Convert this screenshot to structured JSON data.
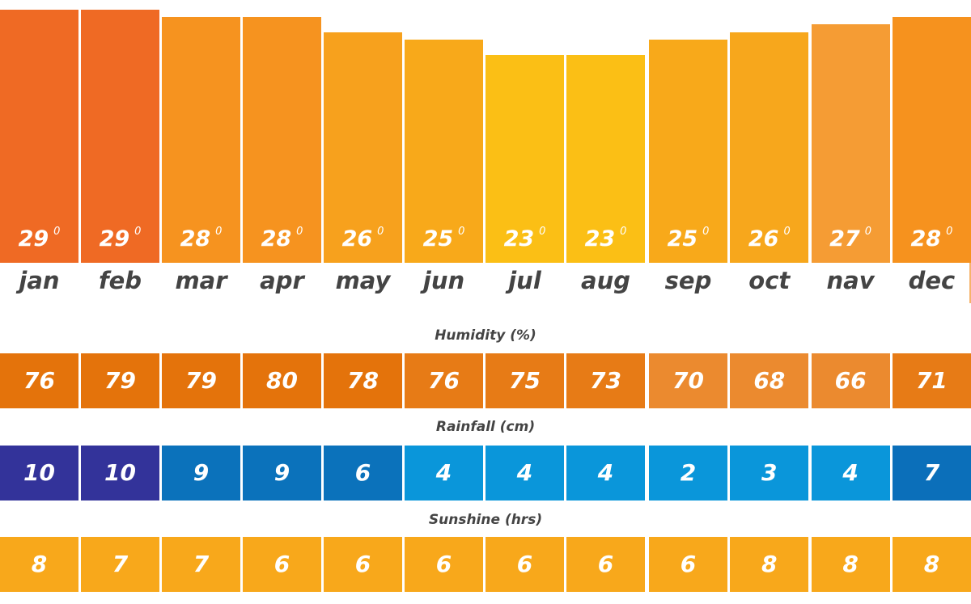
{
  "chart_data": {
    "type": "bar",
    "title": "",
    "categories": [
      "jan",
      "feb",
      "mar",
      "apr",
      "may",
      "jun",
      "jul",
      "aug",
      "sep",
      "oct",
      "nav",
      "dec"
    ],
    "temperature": {
      "unit_symbol": "0",
      "values": [
        29,
        29,
        28,
        28,
        26,
        25,
        23,
        23,
        25,
        26,
        27,
        28
      ],
      "colors": [
        "#ef6a24",
        "#ef6a24",
        "#f6931f",
        "#f6931f",
        "#f7a11d",
        "#f8a91a",
        "#fbbf15",
        "#fbbf15",
        "#f8a91a",
        "#f7a71c",
        "#f59c34",
        "#f6921e"
      ]
    },
    "rows": [
      {
        "title": "Humidity (%)",
        "values": [
          76,
          79,
          79,
          80,
          78,
          76,
          75,
          73,
          70,
          68,
          66,
          71
        ],
        "colors": [
          "#e4730b",
          "#e4730b",
          "#e4730b",
          "#e4730b",
          "#e4730b",
          "#e77b16",
          "#e77b16",
          "#e77b16",
          "#eb8a2f",
          "#eb8a2f",
          "#eb8a2f",
          "#e77b16"
        ]
      },
      {
        "title": "Rainfall (cm)",
        "values": [
          10,
          10,
          9,
          9,
          6,
          4,
          4,
          4,
          2,
          3,
          4,
          7
        ],
        "colors": [
          "#33339a",
          "#33339a",
          "#0b72bb",
          "#0b72bb",
          "#0b72bb",
          "#0a96da",
          "#0a96da",
          "#0a96da",
          "#0a96da",
          "#0a96da",
          "#0a96da",
          "#0b6fba"
        ]
      },
      {
        "title": "Sunshine (hrs)",
        "values": [
          8,
          7,
          7,
          6,
          6,
          6,
          6,
          6,
          6,
          8,
          8,
          8
        ],
        "colors": [
          "#f8a81b",
          "#f8a81b",
          "#f8a81b",
          "#f8a81b",
          "#f8a81b",
          "#f8a81b",
          "#f8a81b",
          "#f8a81b",
          "#f8a81b",
          "#f8a81b",
          "#f8a81b",
          "#f8a81b"
        ]
      }
    ]
  }
}
